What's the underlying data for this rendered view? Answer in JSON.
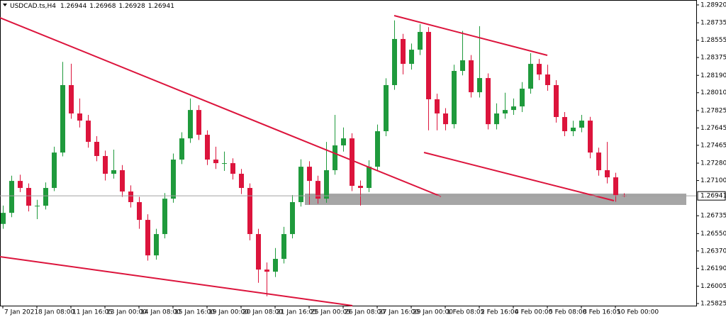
{
  "chart_data": {
    "type": "candlestick",
    "title": "USDCAD.ts,H4",
    "categories": [
      "7 Jan 2021",
      null,
      null,
      null,
      "8 Jan 08:00",
      null,
      null,
      null,
      "11 Jan 16:05",
      null,
      null,
      null,
      "13 Jan 00:00",
      null,
      null,
      null,
      "14 Jan 08:00",
      null,
      null,
      null,
      "15 Jan 16:00",
      null,
      null,
      null,
      "19 Jan 00:00",
      null,
      null,
      null,
      "20 Jan 08:00",
      null,
      null,
      null,
      "21 Jan 16:05",
      null,
      null,
      null,
      "25 Jan 00:05",
      null,
      null,
      null,
      "26 Jan 08:00",
      null,
      null,
      null,
      "27 Jan 16:00",
      null,
      null,
      null,
      "29 Jan 00:00",
      null,
      null,
      null,
      "1 Feb 08:05",
      null,
      null,
      null,
      "2 Feb 16:00",
      null,
      null,
      null,
      "4 Feb 00:00",
      null,
      null,
      null,
      "5 Feb 08:00",
      null,
      null,
      null,
      "8 Feb 16:05",
      null,
      null,
      null,
      "10 Feb 00:00",
      null
    ],
    "open": [
      1.2665,
      1.26765,
      1.27096,
      1.27023,
      1.26839,
      1.26839,
      1.27023,
      1.2739,
      1.28089,
      1.27795,
      1.27721,
      1.27501,
      1.27354,
      1.2717,
      1.27207,
      1.26986,
      1.26876,
      1.26692,
      1.26324,
      1.26545,
      1.26912,
      1.27317,
      1.27537,
      1.27831,
      1.27574,
      1.27317,
      1.2728,
      1.2728,
      1.2717,
      1.27023,
      1.26545,
      1.26177,
      1.26155,
      1.26288,
      1.26545,
      1.26876,
      1.27243,
      1.27096,
      1.26912,
      1.27207,
      1.27464,
      1.27537,
      1.27045,
      1.27023,
      1.27243,
      1.27611,
      1.28089,
      1.28567,
      1.28309,
      1.28456,
      1.2864,
      1.27942,
      1.27795,
      1.27684,
      1.28236,
      1.28346,
      1.28015,
      1.28162,
      1.27684,
      1.27795,
      1.27831,
      1.27868,
      1.28052,
      1.28309,
      1.28199,
      1.28089,
      1.27758,
      1.27611,
      1.27648,
      1.27721,
      1.2739,
      1.27207,
      1.27133,
      1.26944
    ],
    "high": [
      1.2684,
      1.2715,
      1.2716,
      1.2707,
      1.269,
      1.2708,
      1.2745,
      1.2833,
      1.2831,
      1.2795,
      1.2778,
      1.2756,
      1.2741,
      1.2742,
      1.2726,
      1.2705,
      1.2693,
      1.2675,
      1.266,
      1.2697,
      1.2738,
      1.276,
      1.2795,
      1.2788,
      1.2762,
      1.2745,
      1.274,
      1.2733,
      1.2722,
      1.2707,
      1.266,
      1.2625,
      1.264,
      1.2662,
      1.2695,
      1.2732,
      1.273,
      1.2715,
      1.275,
      1.2778,
      1.2765,
      1.2759,
      1.271,
      1.2731,
      1.2768,
      1.2816,
      1.2876,
      1.2862,
      1.2852,
      1.2872,
      1.2869,
      1.28,
      1.2785,
      1.283,
      1.2865,
      1.284,
      1.287,
      1.2821,
      1.279,
      1.2801,
      1.2795,
      1.2812,
      1.2842,
      1.2836,
      1.283,
      1.2814,
      1.2781,
      1.2772,
      1.2778,
      1.2776,
      1.2744,
      1.275,
      1.2718,
      1.26968
    ],
    "low": [
      1.266,
      1.2672,
      1.2698,
      1.2678,
      1.267,
      1.268,
      1.2699,
      1.2735,
      1.2774,
      1.2765,
      1.2744,
      1.273,
      1.271,
      1.2712,
      1.2693,
      1.2682,
      1.266,
      1.2627,
      1.2628,
      1.265,
      1.2687,
      1.2727,
      1.2749,
      1.2752,
      1.2726,
      1.2722,
      1.272,
      1.2711,
      1.2696,
      1.2648,
      1.2604,
      1.259,
      1.261,
      1.2624,
      1.265,
      1.2683,
      1.2685,
      1.2686,
      1.2687,
      1.2716,
      1.274,
      1.2699,
      1.2684,
      1.2698,
      1.272,
      1.2756,
      1.2804,
      1.282,
      1.2825,
      1.284,
      1.2762,
      1.2762,
      1.2762,
      1.2764,
      1.2819,
      1.2796,
      1.2796,
      1.2763,
      1.2763,
      1.2774,
      1.2778,
      1.2781,
      1.28,
      1.2814,
      1.2803,
      1.277,
      1.2756,
      1.2756,
      1.276,
      1.2733,
      1.2715,
      1.2707,
      1.2688,
      1.26928
    ],
    "close": [
      1.26765,
      1.27096,
      1.27023,
      1.26839,
      1.26839,
      1.27023,
      1.2739,
      1.28089,
      1.27795,
      1.27721,
      1.27501,
      1.27354,
      1.2717,
      1.27207,
      1.26986,
      1.26876,
      1.26692,
      1.26324,
      1.26545,
      1.26912,
      1.27317,
      1.27537,
      1.27831,
      1.27574,
      1.27317,
      1.2728,
      1.2728,
      1.2717,
      1.27023,
      1.26545,
      1.26177,
      1.26155,
      1.26288,
      1.26545,
      1.26876,
      1.27243,
      1.27096,
      1.26912,
      1.27207,
      1.27464,
      1.27537,
      1.27045,
      1.27023,
      1.27243,
      1.27611,
      1.28089,
      1.28567,
      1.28309,
      1.28456,
      1.2864,
      1.27942,
      1.27795,
      1.27684,
      1.28236,
      1.28346,
      1.28015,
      1.28162,
      1.27684,
      1.27795,
      1.27831,
      1.27868,
      1.28052,
      1.28309,
      1.28199,
      1.28089,
      1.27758,
      1.27611,
      1.27648,
      1.27721,
      1.2739,
      1.27207,
      1.27133,
      1.26949,
      1.26941
    ],
    "up_color": "#1f9a3c",
    "down_color": "#dc143c",
    "ylim": [
      1.25803,
      1.28971
    ],
    "yticks": [
      {
        "value": 1.2892,
        "label": "1.28920"
      },
      1.28735,
      1.28555,
      1.28375,
      {
        "value": 1.2819,
        "label": "1.28190"
      },
      {
        "value": 1.2801,
        "label": "1.28010"
      },
      1.27825,
      1.27645,
      1.27465,
      {
        "value": 1.2728,
        "label": "1.27280"
      },
      {
        "value": 1.271,
        "label": "1.27100"
      },
      1.26735,
      {
        "value": 1.2655,
        "label": "1.26550"
      },
      {
        "value": 1.2637,
        "label": "1.26370"
      },
      {
        "value": 1.2619,
        "label": "1.26190"
      },
      1.26005,
      1.25825
    ],
    "current_price": 1.26941
  }
}
